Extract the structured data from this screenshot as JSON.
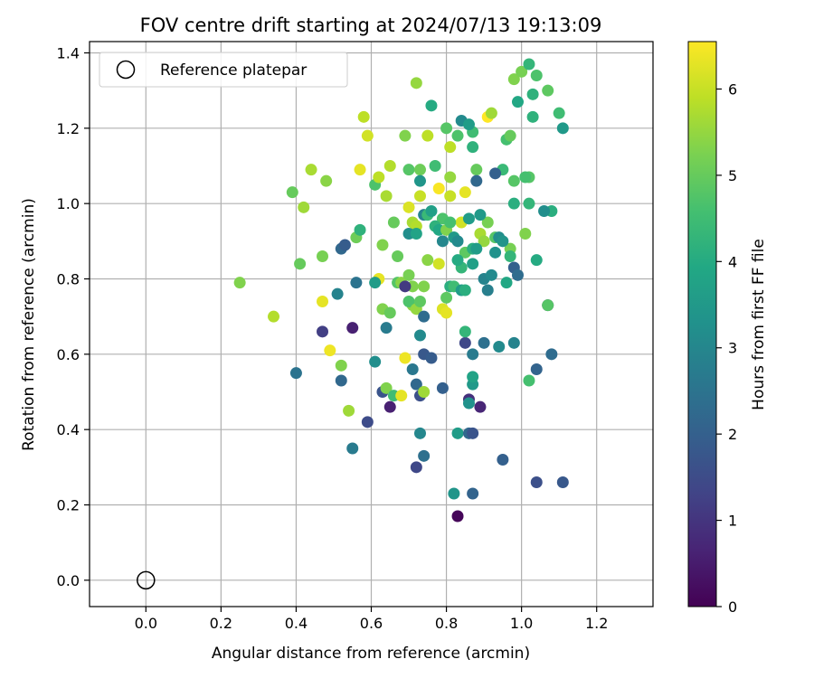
{
  "chart_data": {
    "type": "scatter",
    "title": "FOV centre drift starting at 2024/07/13 19:13:09",
    "xlabel": "Angular distance from reference (arcmin)",
    "ylabel": "Rotation from reference (arcmin)",
    "xlim": [
      -0.15,
      1.35
    ],
    "ylim": [
      -0.07,
      1.43
    ],
    "xticks": [
      0.0,
      0.2,
      0.4,
      0.6,
      0.8,
      1.0,
      1.2
    ],
    "xtick_labels": [
      "0.0",
      "0.2",
      "0.4",
      "0.6",
      "0.8",
      "1.0",
      "1.2"
    ],
    "yticks": [
      0.0,
      0.2,
      0.4,
      0.6,
      0.8,
      1.0,
      1.2,
      1.4
    ],
    "ytick_labels": [
      "0.0",
      "0.2",
      "0.4",
      "0.6",
      "0.8",
      "1.0",
      "1.2",
      "1.4"
    ],
    "grid": true,
    "legend": {
      "placement": "upper-left",
      "label": "Reference platepar"
    },
    "reference_point": {
      "x": 0.0,
      "y": 0.0
    },
    "colorbar": {
      "label": "Hours from first FF file",
      "colormap": "viridis",
      "range": [
        0,
        6.55
      ],
      "ticks": [
        0,
        1,
        2,
        3,
        4,
        5,
        6
      ],
      "tick_labels": [
        "0",
        "1",
        "2",
        "3",
        "4",
        "5",
        "6"
      ]
    },
    "points": [
      [
        0.25,
        0.79,
        5.3
      ],
      [
        0.34,
        0.7,
        5.8
      ],
      [
        0.39,
        1.03,
        5.0
      ],
      [
        0.41,
        0.84,
        5.0
      ],
      [
        0.42,
        0.99,
        5.6
      ],
      [
        0.44,
        1.09,
        5.7
      ],
      [
        0.47,
        0.86,
        5.2
      ],
      [
        0.48,
        1.06,
        5.4
      ],
      [
        0.47,
        0.74,
        6.3
      ],
      [
        0.49,
        0.61,
        6.4
      ],
      [
        0.52,
        0.57,
        5.3
      ],
      [
        0.54,
        0.45,
        5.6
      ],
      [
        0.56,
        0.91,
        5.1
      ],
      [
        0.57,
        0.93,
        4.2
      ],
      [
        0.57,
        1.09,
        6.3
      ],
      [
        0.58,
        1.23,
        5.9
      ],
      [
        0.59,
        1.18,
        6.1
      ],
      [
        0.61,
        1.05,
        4.7
      ],
      [
        0.62,
        1.07,
        5.9
      ],
      [
        0.62,
        0.8,
        6.3
      ],
      [
        0.63,
        0.89,
        5.3
      ],
      [
        0.64,
        1.02,
        5.7
      ],
      [
        0.65,
        1.1,
        5.8
      ],
      [
        0.66,
        0.95,
        5.0
      ],
      [
        0.67,
        0.86,
        5.0
      ],
      [
        0.69,
        1.18,
        5.3
      ],
      [
        0.7,
        1.09,
        4.8
      ],
      [
        0.7,
        0.99,
        6.2
      ],
      [
        0.71,
        0.95,
        5.7
      ],
      [
        0.72,
        1.32,
        5.5
      ],
      [
        0.73,
        1.09,
        5.1
      ],
      [
        0.73,
        1.02,
        6.0
      ],
      [
        0.72,
        0.94,
        5.8
      ],
      [
        0.74,
        0.78,
        5.3
      ],
      [
        0.75,
        1.18,
        5.9
      ],
      [
        0.75,
        0.85,
        5.4
      ],
      [
        0.76,
        1.26,
        4.0
      ],
      [
        0.77,
        1.1,
        4.5
      ],
      [
        0.78,
        1.04,
        6.5
      ],
      [
        0.79,
        0.96,
        4.7
      ],
      [
        0.8,
        1.2,
        4.8
      ],
      [
        0.81,
        1.15,
        5.9
      ],
      [
        0.81,
        1.07,
        5.5
      ],
      [
        0.81,
        1.02,
        6.0
      ],
      [
        0.82,
        0.91,
        5.0
      ],
      [
        0.83,
        1.18,
        4.7
      ],
      [
        0.84,
        0.95,
        6.1
      ],
      [
        0.85,
        1.03,
        6.3
      ],
      [
        0.87,
        1.19,
        4.5
      ],
      [
        0.87,
        1.15,
        4.2
      ],
      [
        0.88,
        1.09,
        5.0
      ],
      [
        0.89,
        0.92,
        5.7
      ],
      [
        0.9,
        0.9,
        5.5
      ],
      [
        0.91,
        0.95,
        5.2
      ],
      [
        0.91,
        1.23,
        6.6
      ],
      [
        0.92,
        1.24,
        5.6
      ],
      [
        0.93,
        0.91,
        4.8
      ],
      [
        0.95,
        1.09,
        4.4
      ],
      [
        0.96,
        1.17,
        4.6
      ],
      [
        0.97,
        0.88,
        5.2
      ],
      [
        0.97,
        1.18,
        5.0
      ],
      [
        0.98,
        1.33,
        5.3
      ],
      [
        0.98,
        1.06,
        4.8
      ],
      [
        0.99,
        1.27,
        3.9
      ],
      [
        1.0,
        1.35,
        5.2
      ],
      [
        1.01,
        0.92,
        5.3
      ],
      [
        1.02,
        1.37,
        4.3
      ],
      [
        1.03,
        1.29,
        4.2
      ],
      [
        1.03,
        1.23,
        4.2
      ],
      [
        1.04,
        1.34,
        4.7
      ],
      [
        1.07,
        1.3,
        4.9
      ],
      [
        1.08,
        0.98,
        4.1
      ],
      [
        1.1,
        1.24,
        4.5
      ],
      [
        1.11,
        1.2,
        3.5
      ],
      [
        1.06,
        0.98,
        3.2
      ],
      [
        1.04,
        0.85,
        4.0
      ],
      [
        1.02,
        1.0,
        4.3
      ],
      [
        1.02,
        1.07,
        4.8
      ],
      [
        1.01,
        1.07,
        4.6
      ],
      [
        0.98,
        1.0,
        4.1
      ],
      [
        0.51,
        0.76,
        2.9
      ],
      [
        0.52,
        0.88,
        2.2
      ],
      [
        0.53,
        0.89,
        1.9
      ],
      [
        0.56,
        0.79,
        2.5
      ],
      [
        0.61,
        0.79,
        3.6
      ],
      [
        0.63,
        0.72,
        5.3
      ],
      [
        0.64,
        0.67,
        2.7
      ],
      [
        0.65,
        0.71,
        5.0
      ],
      [
        0.67,
        0.79,
        4.8
      ],
      [
        0.68,
        0.79,
        5.4
      ],
      [
        0.7,
        0.92,
        3.2
      ],
      [
        0.71,
        0.73,
        5.4
      ],
      [
        0.72,
        0.92,
        3.8
      ],
      [
        0.73,
        1.06,
        3.4
      ],
      [
        0.74,
        0.97,
        2.9
      ],
      [
        0.75,
        0.97,
        4.4
      ],
      [
        0.76,
        0.98,
        3.7
      ],
      [
        0.77,
        0.94,
        4.2
      ],
      [
        0.78,
        0.93,
        3.9
      ],
      [
        0.79,
        0.9,
        3.0
      ],
      [
        0.8,
        0.93,
        5.3
      ],
      [
        0.81,
        0.95,
        4.6
      ],
      [
        0.82,
        0.91,
        3.5
      ],
      [
        0.83,
        0.9,
        3.1
      ],
      [
        0.84,
        0.83,
        4.3
      ],
      [
        0.85,
        0.87,
        4.9
      ],
      [
        0.86,
        0.96,
        3.6
      ],
      [
        0.87,
        0.88,
        4.1
      ],
      [
        0.88,
        0.88,
        3.6
      ],
      [
        0.89,
        0.97,
        3.5
      ],
      [
        0.9,
        0.8,
        2.9
      ],
      [
        0.91,
        0.77,
        2.8
      ],
      [
        0.92,
        0.81,
        3.1
      ],
      [
        0.93,
        0.87,
        3.3
      ],
      [
        0.94,
        0.91,
        3.2
      ],
      [
        0.95,
        0.9,
        3.4
      ],
      [
        0.96,
        0.79,
        3.9
      ],
      [
        0.97,
        0.86,
        4.3
      ],
      [
        0.98,
        0.83,
        2.0
      ],
      [
        0.99,
        0.81,
        2.3
      ],
      [
        0.78,
        0.84,
        6.1
      ],
      [
        0.79,
        0.72,
        6.2
      ],
      [
        0.8,
        0.71,
        6.3
      ],
      [
        0.8,
        0.75,
        4.9
      ],
      [
        0.81,
        0.78,
        4.1
      ],
      [
        0.82,
        0.78,
        4.5
      ],
      [
        0.83,
        0.85,
        4.0
      ],
      [
        0.84,
        0.77,
        3.6
      ],
      [
        0.85,
        0.77,
        4.1
      ],
      [
        0.87,
        0.84,
        3.7
      ],
      [
        0.7,
        0.74,
        4.7
      ],
      [
        0.71,
        0.78,
        5.3
      ],
      [
        0.72,
        0.72,
        5.5
      ],
      [
        0.73,
        0.74,
        4.9
      ],
      [
        0.74,
        0.7,
        2.3
      ],
      [
        0.69,
        0.78,
        1.1
      ],
      [
        0.7,
        0.81,
        5.2
      ],
      [
        0.73,
        0.65,
        3.1
      ],
      [
        0.74,
        0.6,
        1.8
      ],
      [
        0.76,
        0.59,
        1.9
      ],
      [
        0.4,
        0.55,
        2.5
      ],
      [
        0.47,
        0.66,
        1.2
      ],
      [
        0.52,
        0.53,
        2.2
      ],
      [
        0.55,
        0.67,
        0.6
      ],
      [
        0.55,
        0.35,
        2.7
      ],
      [
        0.59,
        0.42,
        1.5
      ],
      [
        0.61,
        0.58,
        3.2
      ],
      [
        0.63,
        0.5,
        1.7
      ],
      [
        0.64,
        0.51,
        5.3
      ],
      [
        0.65,
        0.46,
        0.6
      ],
      [
        0.66,
        0.49,
        4.5
      ],
      [
        0.68,
        0.49,
        6.3
      ],
      [
        0.69,
        0.59,
        6.4
      ],
      [
        0.71,
        0.56,
        2.6
      ],
      [
        0.72,
        0.52,
        2.2
      ],
      [
        0.73,
        0.49,
        1.6
      ],
      [
        0.74,
        0.5,
        5.6
      ],
      [
        0.72,
        0.3,
        1.4
      ],
      [
        0.73,
        0.39,
        3.0
      ],
      [
        0.74,
        0.33,
        2.4
      ],
      [
        0.79,
        0.51,
        2.0
      ],
      [
        0.82,
        0.23,
        3.4
      ],
      [
        0.83,
        0.17,
        0.1
      ],
      [
        0.83,
        0.39,
        3.6
      ],
      [
        0.85,
        0.63,
        1.4
      ],
      [
        0.85,
        0.66,
        4.3
      ],
      [
        0.86,
        0.48,
        0.9
      ],
      [
        0.86,
        0.39,
        2.2
      ],
      [
        0.87,
        0.23,
        2.1
      ],
      [
        0.87,
        0.39,
        1.7
      ],
      [
        0.86,
        0.47,
        3.3
      ],
      [
        0.87,
        0.52,
        3.5
      ],
      [
        0.87,
        0.54,
        3.8
      ],
      [
        0.87,
        0.6,
        2.7
      ],
      [
        0.89,
        0.46,
        0.7
      ],
      [
        0.9,
        0.63,
        2.4
      ],
      [
        0.94,
        0.62,
        3.1
      ],
      [
        0.95,
        0.32,
        2.0
      ],
      [
        0.98,
        0.63,
        2.9
      ],
      [
        1.02,
        0.53,
        4.6
      ],
      [
        1.04,
        0.26,
        1.6
      ],
      [
        1.04,
        0.56,
        2.1
      ],
      [
        1.07,
        0.73,
        0.9
      ],
      [
        1.07,
        0.73,
        4.8
      ],
      [
        1.08,
        0.6,
        2.3
      ],
      [
        1.11,
        0.26,
        1.8
      ],
      [
        0.84,
        1.22,
        3.1
      ],
      [
        0.86,
        1.21,
        3.6
      ],
      [
        0.88,
        1.06,
        2.2
      ],
      [
        0.93,
        1.08,
        2.0
      ]
    ]
  }
}
